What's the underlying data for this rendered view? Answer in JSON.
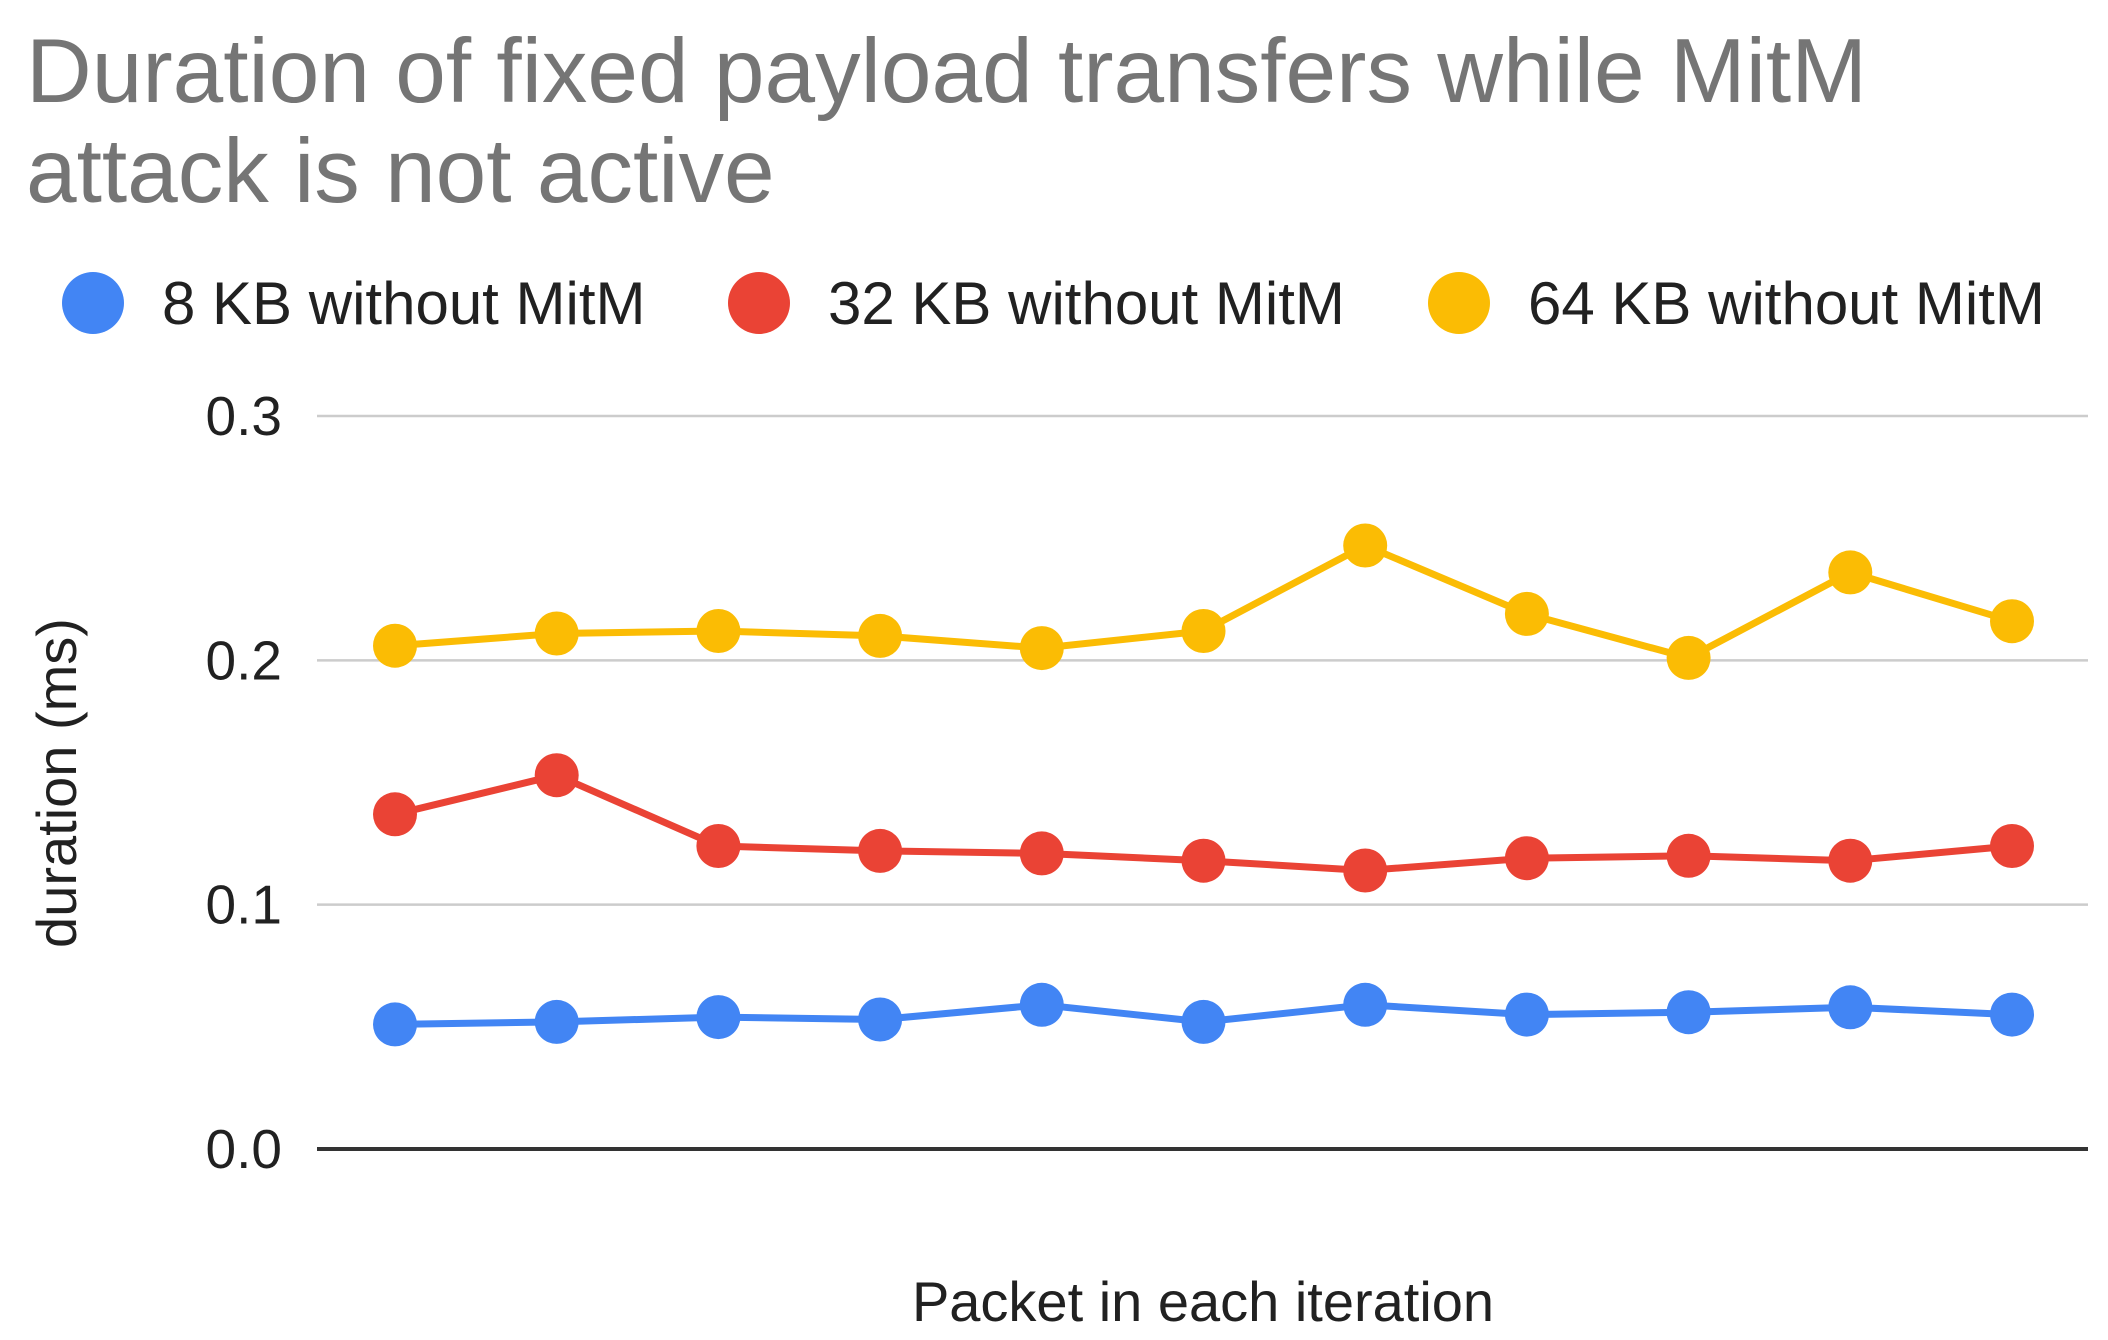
{
  "chart_data": {
    "type": "line",
    "title": "Duration of fixed payload transfers while MitM attack is not active",
    "xlabel": "Packet in each iteration",
    "ylabel": "duration (ms)",
    "ylim": [
      0,
      0.3
    ],
    "yticks": [
      "0.0",
      "0.1",
      "0.2",
      "0.3"
    ],
    "grid": true,
    "legend_position": "top",
    "x": [
      1,
      2,
      3,
      4,
      5,
      6,
      7,
      8,
      9,
      10,
      11
    ],
    "series": [
      {
        "name": "8 KB without MitM",
        "color": "#4285f4",
        "values": [
          0.051,
          0.052,
          0.054,
          0.053,
          0.059,
          0.052,
          0.059,
          0.055,
          0.056,
          0.058,
          0.055
        ]
      },
      {
        "name": "32 KB without MitM",
        "color": "#ea4335",
        "values": [
          0.137,
          0.153,
          0.124,
          0.122,
          0.121,
          0.118,
          0.114,
          0.119,
          0.12,
          0.118,
          0.124
        ]
      },
      {
        "name": "64 KB without MitM",
        "color": "#fbbc04",
        "values": [
          0.206,
          0.211,
          0.212,
          0.21,
          0.205,
          0.212,
          0.247,
          0.219,
          0.201,
          0.236,
          0.216
        ]
      }
    ]
  }
}
